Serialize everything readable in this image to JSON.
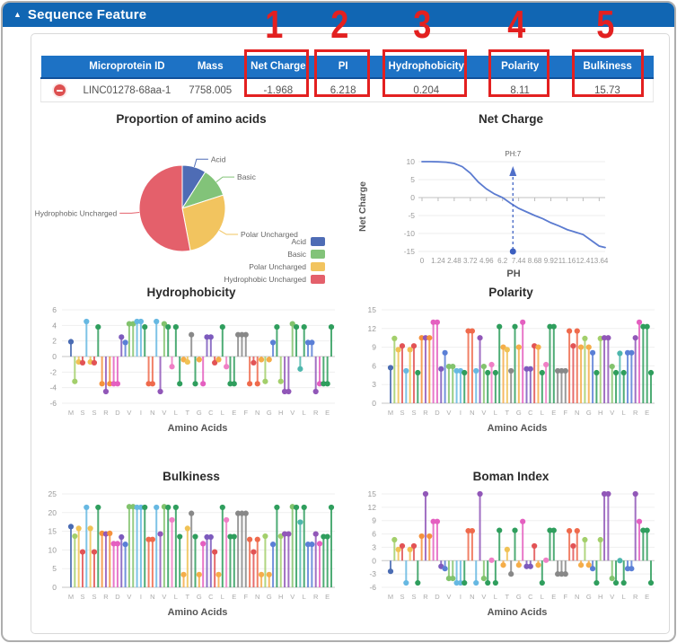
{
  "panel": {
    "title": "Sequence Feature",
    "collapse_icon": "▲"
  },
  "annotations": {
    "labels": [
      "1",
      "2",
      "3",
      "4",
      "5"
    ],
    "color": "#e32020"
  },
  "table": {
    "columns": [
      "Microprotein ID",
      "Mass",
      "Net Charge",
      "PI",
      "Hydrophobicity",
      "Polarity",
      "Bulkiness"
    ],
    "row": {
      "microprotein_id": "LINC01278-68aa-1",
      "mass": "7758.005",
      "net_charge": "-1.968",
      "pi": "6.218",
      "hydrophobicity": "0.204",
      "polarity": "8.11",
      "bulkiness": "15.73"
    }
  },
  "sequence": "MHTSITSLQRQDDCAVVIILNNIRVLYLEGTFEGDCCSGLYEEFFFNSNGHGALHRRVLPLAARDEEL",
  "residue_colors": {
    "M": "#4a6cb3",
    "H": "#a3cf6b",
    "T": "#f0c255",
    "S": "#e25355",
    "I": "#66b8e2",
    "L": "#2f9e5d",
    "Q": "#f5913c",
    "R": "#9157b8",
    "D": "#e45fc0",
    "C": "#7d5bbd",
    "A": "#5a7fd6",
    "V": "#82c36d",
    "N": "#ef6a4c",
    "Y": "#f07fc6",
    "E": "#2f9e5d",
    "G": "#f5ad49",
    "P": "#4db6ac"
  },
  "scales": {
    "hydropathy": {
      "M": 1.9,
      "H": -3.2,
      "T": -0.7,
      "S": -0.8,
      "I": 4.5,
      "L": 3.8,
      "Q": -3.5,
      "R": -4.5,
      "D": -3.5,
      "C": 2.5,
      "A": 1.8,
      "V": 4.2,
      "N": -3.5,
      "Y": -1.3,
      "E": -3.5,
      "G": -0.4,
      "F": 2.8,
      "P": -1.6
    },
    "polarity": {
      "M": 5.7,
      "H": 10.4,
      "T": 8.6,
      "S": 9.2,
      "I": 5.2,
      "L": 4.9,
      "Q": 10.5,
      "R": 10.5,
      "D": 13,
      "C": 5.5,
      "A": 8.1,
      "V": 5.9,
      "N": 11.6,
      "Y": 6.2,
      "E": 12.3,
      "G": 9,
      "F": 5.2,
      "P": 8
    },
    "bulkiness": {
      "M": 16.25,
      "H": 13.69,
      "T": 15.77,
      "S": 9.47,
      "I": 21.4,
      "L": 21.4,
      "Q": 14.45,
      "R": 14.28,
      "D": 11.68,
      "C": 13.46,
      "A": 11.5,
      "V": 21.57,
      "N": 12.82,
      "Y": 18.03,
      "E": 13.57,
      "G": 3.4,
      "F": 19.8,
      "P": 17.43
    },
    "boman": {
      "M": -2.4,
      "H": 4.7,
      "T": 2.5,
      "S": 3.3,
      "I": -5,
      "L": -5,
      "Q": 5.5,
      "R": 15,
      "D": 8.8,
      "C": -1.3,
      "A": -1.8,
      "V": -4,
      "N": 6.7,
      "Y": 0.1,
      "E": 6.8,
      "G": -1,
      "F": -3,
      "P": 0
    }
  },
  "chart_data": [
    {
      "type": "pie",
      "title": "Proportion of amino acids",
      "slices": [
        {
          "label": "Acid",
          "value": 9,
          "color": "#4e6cb5"
        },
        {
          "label": "Basic",
          "value": 11,
          "color": "#82c379"
        },
        {
          "label": "Polar Uncharged",
          "value": 27,
          "color": "#f2c45f"
        },
        {
          "label": "Hydrophobic Uncharged",
          "value": 53,
          "color": "#e4606b"
        }
      ],
      "legend_position": "bottom-right"
    },
    {
      "type": "line",
      "title": "Net Charge",
      "xlabel": "PH",
      "ylabel": "Net Charge",
      "xlim": [
        0,
        14.1
      ],
      "ylim": [
        -15,
        10
      ],
      "xticks": [
        0,
        1.24,
        2.48,
        3.72,
        4.96,
        6.2,
        7.44,
        8.68,
        9.92,
        11.16,
        12.4,
        13.64
      ],
      "yticks": [
        10,
        5,
        0,
        -5,
        -10,
        -15
      ],
      "line_color": "#5b7bd0",
      "points": [
        [
          0,
          10
        ],
        [
          0.62,
          10
        ],
        [
          1.24,
          9.95
        ],
        [
          1.86,
          9.85
        ],
        [
          2.48,
          9.5
        ],
        [
          3.1,
          8.6
        ],
        [
          3.72,
          6.8
        ],
        [
          4.34,
          4.3
        ],
        [
          4.96,
          2.4
        ],
        [
          5.58,
          1.0
        ],
        [
          6.2,
          0.0
        ],
        [
          6.82,
          -1.6
        ],
        [
          7.44,
          -3.0
        ],
        [
          8.06,
          -4.0
        ],
        [
          8.68,
          -5.0
        ],
        [
          9.3,
          -5.9
        ],
        [
          9.92,
          -7.0
        ],
        [
          10.54,
          -7.9
        ],
        [
          11.16,
          -8.9
        ],
        [
          11.78,
          -9.6
        ],
        [
          12.4,
          -10.3
        ],
        [
          13.02,
          -11.9
        ],
        [
          13.64,
          -13.5
        ],
        [
          14.1,
          -13.9
        ]
      ],
      "marker": {
        "x": 7,
        "label": "PH:7"
      }
    },
    {
      "type": "stem",
      "title": "Hydrophobicity",
      "xlabel": "Amino Acids",
      "yticks": [
        6,
        4,
        2,
        0,
        -2,
        -4,
        -6
      ],
      "ylim": [
        -6,
        6
      ],
      "scale_key": "hydropathy"
    },
    {
      "type": "stem",
      "title": "Polarity",
      "xlabel": "Amino Acids",
      "yticks": [
        15,
        12,
        9,
        6,
        3,
        0
      ],
      "ylim": [
        0,
        15
      ],
      "scale_key": "polarity"
    },
    {
      "type": "stem",
      "title": "Bulkiness",
      "xlabel": "Amino Acids",
      "yticks": [
        25,
        20,
        15,
        10,
        5,
        0
      ],
      "ylim": [
        0,
        25
      ],
      "scale_key": "bulkiness"
    },
    {
      "type": "stem",
      "title": "Boman Index",
      "xlabel": "Amino Acids",
      "yticks": [
        15,
        12,
        9,
        6,
        3,
        0,
        -3,
        -6
      ],
      "ylim": [
        -6,
        15
      ],
      "scale_key": "boman"
    }
  ]
}
